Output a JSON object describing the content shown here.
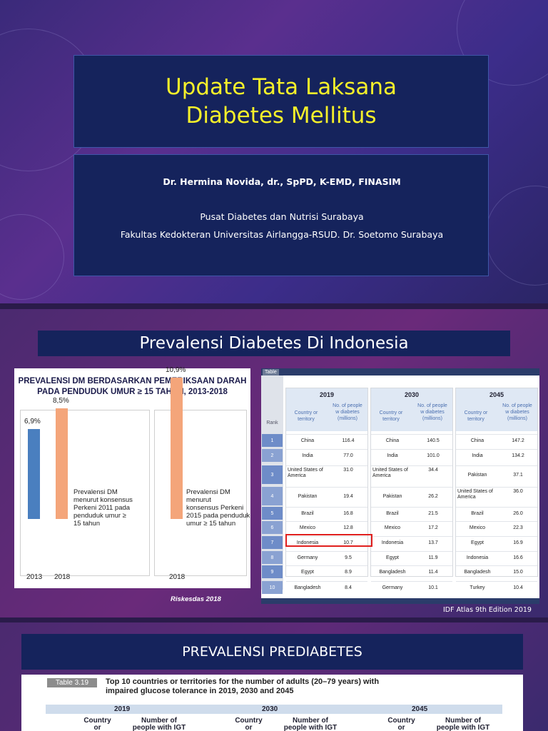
{
  "slide1": {
    "title_line1": "Update Tata Laksana",
    "title_line2": "Diabetes Mellitus",
    "author": "Dr. Hermina Novida, dr., SpPD, K-EMD, FINASIM",
    "affil1": "Pusat Diabetes dan Nutrisi Surabaya",
    "affil2": "Fakultas Kedokteran Universitas Airlangga-RSUD. Dr. Soetomo Surabaya",
    "colors": {
      "title": "#f5f02a",
      "box": "#15235c"
    }
  },
  "slide2": {
    "title": "Prevalensi Diabetes Di Indonesia",
    "left_chart": {
      "title1": "PREVALENSI DM BERDASARKAN PEMERIKSAAN DARAH",
      "title2": "PADA PENDUDUK UMUR ≥ 15 TAHUN, 2013-2018",
      "note_a": [
        "Prevalensi DM",
        "menurut konsensus",
        "Perkeni 2011 pada",
        "penduduk umur ≥",
        "15 tahun"
      ],
      "note_b": [
        "Prevalensi DM menurut",
        "konsensus Perkeni",
        "2015 pada penduduk",
        "umur ≥ 15 tahun"
      ],
      "source": "Riskesdas 2018"
    },
    "table": {
      "tag": "Table",
      "rank_label": "Rank",
      "col_country": [
        "Country or",
        "territory"
      ],
      "col_people": [
        "No. of people",
        "w diabetes",
        "(millions)"
      ],
      "years": [
        {
          "year": "2019",
          "rows": [
            [
              "China",
              "116.4"
            ],
            [
              "India",
              "77.0"
            ],
            [
              "United States of America",
              "31.0"
            ],
            [
              "Pakistan",
              "19.4"
            ],
            [
              "Brazil",
              "16.8"
            ],
            [
              "Mexico",
              "12.8"
            ],
            [
              "Indonesia",
              "10.7"
            ],
            [
              "Germany",
              "9.5"
            ],
            [
              "Egypt",
              "8.9"
            ],
            [
              "Bangladesh",
              "8.4"
            ]
          ]
        },
        {
          "year": "2030",
          "rows": [
            [
              "China",
              "140.5"
            ],
            [
              "India",
              "101.0"
            ],
            [
              "United States of America",
              "34.4"
            ],
            [
              "Pakistan",
              "26.2"
            ],
            [
              "Brazil",
              "21.5"
            ],
            [
              "Mexico",
              "17.2"
            ],
            [
              "Indonesia",
              "13.7"
            ],
            [
              "Egypt",
              "11.9"
            ],
            [
              "Bangladesh",
              "11.4"
            ],
            [
              "Germany",
              "10.1"
            ]
          ]
        },
        {
          "year": "2045",
          "rows": [
            [
              "China",
              "147.2"
            ],
            [
              "India",
              "134.2"
            ],
            [
              "Pakistan",
              "37.1"
            ],
            [
              "United States of America",
              "36.0"
            ],
            [
              "Brazil",
              "26.0"
            ],
            [
              "Mexico",
              "22.3"
            ],
            [
              "Egypt",
              "16.9"
            ],
            [
              "Indonesia",
              "16.6"
            ],
            [
              "Bangladesh",
              "15.0"
            ],
            [
              "Turkey",
              "10.4"
            ]
          ]
        }
      ],
      "ranks": [
        "1",
        "2",
        "3",
        "4",
        "5",
        "6",
        "7",
        "8",
        "9",
        "10"
      ],
      "source": "IDF Atlas 9th Edition 2019"
    }
  },
  "chart_data": {
    "type": "bar",
    "categories": [
      "2013",
      "2018",
      "2018"
    ],
    "values": [
      6.9,
      8.5,
      10.9
    ],
    "data_labels": [
      "6,9%",
      "8,5%",
      "10,9%"
    ],
    "title": "PREVALENSI DM BERDASARKAN PEMERIKSAAN DARAH PADA PENDUDUK UMUR ≥ 15 TAHUN, 2013-2018",
    "xlabel": "",
    "ylabel": "",
    "ylim": [
      0,
      12
    ],
    "colors": [
      "#4a7fbf",
      "#f4a57a",
      "#f4a57a"
    ],
    "grid": false
  },
  "slide3": {
    "title": "PREVALENSI PREDIABETES",
    "tag": "Table 3.19",
    "text1": "Top 10 countries or territories for the number of adults (20–79 years) with",
    "text2": "impaired glucose tolerance in 2019, 2030 and 2045",
    "years": [
      "2019",
      "2030",
      "2045"
    ],
    "col_country": [
      "Country",
      "or"
    ],
    "col_people": [
      "Number of",
      "people with IGT"
    ]
  }
}
